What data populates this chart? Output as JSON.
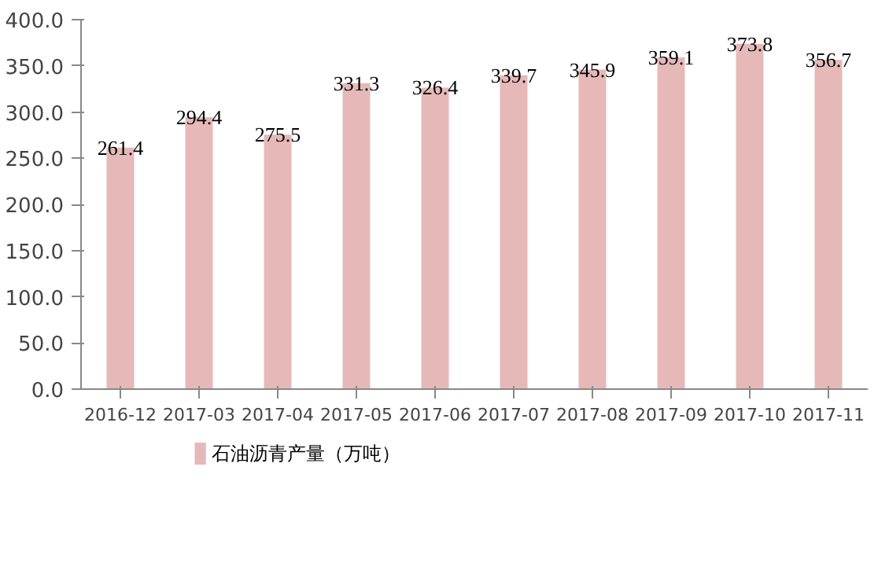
{
  "chart_data": {
    "type": "bar",
    "categories": [
      "2016-12",
      "2017-03",
      "2017-04",
      "2017-05",
      "2017-06",
      "2017-07",
      "2017-08",
      "2017-09",
      "2017-10",
      "2017-11"
    ],
    "series": [
      {
        "name": "石油沥青产量（万吨）",
        "color": "#e6b9b8",
        "values": [
          261.4,
          294.4,
          275.5,
          331.3,
          326.4,
          339.7,
          345.9,
          359.1,
          373.8,
          356.7
        ]
      }
    ],
    "ylim": [
      0,
      400
    ],
    "yticks": [
      {
        "value": 0,
        "label": "0.0"
      },
      {
        "value": 50,
        "label": "50.0"
      },
      {
        "value": 100,
        "label": "100.0"
      },
      {
        "value": 150,
        "label": "150.0"
      },
      {
        "value": 200,
        "label": "200.0"
      },
      {
        "value": 250,
        "label": "250.0"
      },
      {
        "value": 300,
        "label": "300.0"
      },
      {
        "value": 350,
        "label": "350.0"
      },
      {
        "value": 400,
        "label": "400.0"
      }
    ],
    "data_labels": true,
    "legend": "bottom",
    "grid": false
  }
}
